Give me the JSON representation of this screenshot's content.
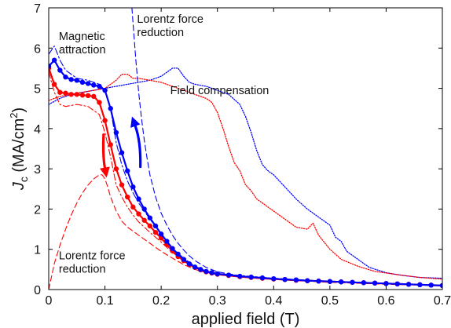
{
  "chart_data": {
    "type": "line",
    "title": "",
    "xlabel": "applied field (T)",
    "ylabel": {
      "main": "J",
      "sub": "c",
      "unit": " (MA/cm",
      "sup": "2",
      "close": ")"
    },
    "xlim": [
      0,
      0.7
    ],
    "ylim": [
      0,
      7
    ],
    "xticks": [
      0,
      0.1,
      0.2,
      0.3,
      0.4,
      0.5,
      0.6,
      0.7
    ],
    "xtick_labels": [
      "0",
      "0.1",
      "0.2",
      "0.3",
      "0.4",
      "0.5",
      "0.6",
      "0.7"
    ],
    "yticks": [
      0,
      1,
      2,
      3,
      4,
      5,
      6,
      7
    ],
    "ytick_labels": [
      "0",
      "1",
      "2",
      "3",
      "4",
      "5",
      "6",
      "7"
    ],
    "grid": false,
    "legend": "none",
    "annotations": [
      {
        "lines": [
          "Magnetic",
          "attraction"
        ],
        "x": 0.018,
        "y": 6.2
      },
      {
        "lines": [
          "Lorentz force",
          "reduction"
        ],
        "x": 0.157,
        "y": 6.63
      },
      {
        "lines": [
          "Field compensation"
        ],
        "x": 0.216,
        "y": 4.86
      },
      {
        "lines": [
          "Lorentz force",
          "reduction"
        ],
        "x": 0.018,
        "y": 0.75
      }
    ],
    "series": [
      {
        "color": "#0000ff",
        "style": "solid-markers",
        "x": [
          0,
          0.01,
          0.02,
          0.03,
          0.04,
          0.05,
          0.06,
          0.07,
          0.08,
          0.09,
          0.1,
          0.11,
          0.12,
          0.13,
          0.14,
          0.15,
          0.16,
          0.17,
          0.18,
          0.19,
          0.2,
          0.21,
          0.22,
          0.23,
          0.24,
          0.25,
          0.26,
          0.27,
          0.28,
          0.29,
          0.3,
          0.32,
          0.34,
          0.36,
          0.38,
          0.4,
          0.42,
          0.44,
          0.46,
          0.48,
          0.5,
          0.52,
          0.54,
          0.56,
          0.58,
          0.6,
          0.62,
          0.64,
          0.66,
          0.68,
          0.7
        ],
        "y": [
          5.55,
          5.7,
          5.45,
          5.28,
          5.22,
          5.2,
          5.15,
          5.12,
          5.08,
          5.05,
          4.95,
          4.5,
          3.9,
          3.4,
          2.95,
          2.55,
          2.25,
          2.0,
          1.78,
          1.58,
          1.38,
          1.2,
          1.02,
          0.88,
          0.75,
          0.64,
          0.56,
          0.5,
          0.45,
          0.42,
          0.39,
          0.36,
          0.33,
          0.31,
          0.29,
          0.27,
          0.25,
          0.24,
          0.22,
          0.21,
          0.2,
          0.19,
          0.18,
          0.17,
          0.16,
          0.15,
          0.14,
          0.13,
          0.12,
          0.11,
          0.1
        ]
      },
      {
        "color": "#ff0000",
        "style": "solid-markers",
        "x": [
          0,
          0.01,
          0.02,
          0.03,
          0.04,
          0.05,
          0.06,
          0.07,
          0.08,
          0.09,
          0.1,
          0.11,
          0.12,
          0.13,
          0.14,
          0.15,
          0.16,
          0.17,
          0.18,
          0.19,
          0.2,
          0.21,
          0.22,
          0.23,
          0.24,
          0.25,
          0.26,
          0.27,
          0.28,
          0.29,
          0.3,
          0.32,
          0.34,
          0.36,
          0.38,
          0.4,
          0.42,
          0.44,
          0.46,
          0.48,
          0.5,
          0.52,
          0.54,
          0.56,
          0.58,
          0.6,
          0.62,
          0.64,
          0.66,
          0.68,
          0.7
        ],
        "y": [
          5.5,
          5.1,
          4.9,
          4.88,
          4.85,
          4.85,
          4.83,
          4.82,
          4.8,
          4.65,
          4.2,
          3.6,
          3.0,
          2.6,
          2.3,
          2.05,
          1.88,
          1.72,
          1.58,
          1.42,
          1.28,
          1.12,
          0.96,
          0.82,
          0.72,
          0.62,
          0.55,
          0.49,
          0.44,
          0.41,
          0.38,
          0.35,
          0.32,
          0.3,
          0.28,
          0.26,
          0.25,
          0.23,
          0.22,
          0.21,
          0.2,
          0.19,
          0.18,
          0.17,
          0.16,
          0.15,
          0.14,
          0.13,
          0.12,
          0.11,
          0.1
        ]
      },
      {
        "color": "#0000ff",
        "style": "dashdot",
        "x": [
          0,
          0.01,
          0.02,
          0.03,
          0.05,
          0.07,
          0.09,
          0.1,
          0.11,
          0.12,
          0.13,
          0.14,
          0.15,
          0.16,
          0.18,
          0.2,
          0.22,
          0.24,
          0.26,
          0.28,
          0.3,
          0.35,
          0.4,
          0.5,
          0.6,
          0.7
        ],
        "y": [
          5.85,
          6.05,
          5.7,
          5.45,
          5.25,
          5.2,
          5.1,
          4.95,
          4.5,
          3.65,
          3.1,
          2.7,
          2.4,
          2.15,
          1.75,
          1.38,
          1.02,
          0.78,
          0.58,
          0.46,
          0.4,
          0.34,
          0.28,
          0.2,
          0.15,
          0.1
        ]
      },
      {
        "color": "#ff0000",
        "style": "dashdot",
        "x": [
          0,
          0.01,
          0.02,
          0.03,
          0.05,
          0.07,
          0.09,
          0.1,
          0.11,
          0.12,
          0.13,
          0.14,
          0.15,
          0.16,
          0.18,
          0.2,
          0.22,
          0.24,
          0.26,
          0.28,
          0.3,
          0.35,
          0.4,
          0.5,
          0.6,
          0.7
        ],
        "y": [
          5.4,
          4.9,
          4.6,
          4.55,
          4.6,
          4.55,
          4.35,
          3.9,
          3.3,
          2.6,
          2.3,
          2.05,
          1.85,
          1.68,
          1.42,
          1.18,
          0.92,
          0.72,
          0.56,
          0.46,
          0.4,
          0.33,
          0.27,
          0.2,
          0.15,
          0.1
        ]
      },
      {
        "color": "#0000ff",
        "style": "dashed",
        "x": [
          0.148,
          0.15,
          0.155,
          0.16,
          0.165,
          0.17,
          0.175,
          0.18,
          0.19,
          0.2,
          0.21,
          0.22,
          0.23,
          0.24,
          0.25,
          0.26,
          0.28,
          0.3,
          0.35,
          0.4,
          0.5,
          0.6,
          0.7
        ],
        "y": [
          7.0,
          6.6,
          5.7,
          4.9,
          4.25,
          3.7,
          3.25,
          2.85,
          2.3,
          1.9,
          1.6,
          1.35,
          1.15,
          0.98,
          0.84,
          0.72,
          0.55,
          0.44,
          0.32,
          0.26,
          0.19,
          0.14,
          0.1
        ]
      },
      {
        "color": "#ff0000",
        "style": "dashed",
        "x": [
          0,
          0.01,
          0.02,
          0.03,
          0.04,
          0.05,
          0.06,
          0.07,
          0.08,
          0.09,
          0.095,
          0.1,
          0.105,
          0.11,
          0.12,
          0.13,
          0.14,
          0.15,
          0.16,
          0.18,
          0.2,
          0.22,
          0.24,
          0.26,
          0.28,
          0.3,
          0.35,
          0.4,
          0.5,
          0.6,
          0.7
        ],
        "y": [
          0.0,
          0.65,
          1.1,
          1.5,
          1.85,
          2.15,
          2.4,
          2.6,
          2.75,
          2.85,
          2.85,
          2.75,
          2.55,
          2.3,
          1.95,
          1.7,
          1.55,
          1.45,
          1.35,
          1.15,
          0.95,
          0.78,
          0.62,
          0.5,
          0.42,
          0.37,
          0.3,
          0.25,
          0.18,
          0.13,
          0.1
        ]
      },
      {
        "color": "#0000ff",
        "style": "dotted",
        "x": [
          0,
          0.02,
          0.04,
          0.06,
          0.08,
          0.1,
          0.12,
          0.14,
          0.16,
          0.18,
          0.2,
          0.21,
          0.22,
          0.23,
          0.24,
          0.25,
          0.26,
          0.28,
          0.3,
          0.32,
          0.34,
          0.35,
          0.36,
          0.37,
          0.38,
          0.39,
          0.4,
          0.42,
          0.44,
          0.46,
          0.48,
          0.5,
          0.51,
          0.52,
          0.53,
          0.55,
          0.57,
          0.6,
          0.63,
          0.66,
          0.7
        ],
        "y": [
          4.6,
          4.75,
          4.85,
          4.9,
          4.95,
          5.0,
          5.05,
          5.1,
          5.15,
          5.2,
          5.3,
          5.4,
          5.5,
          5.5,
          5.3,
          5.15,
          5.1,
          5.05,
          4.95,
          4.85,
          4.6,
          4.3,
          3.9,
          3.45,
          3.1,
          2.95,
          2.85,
          2.55,
          2.25,
          2.0,
          1.8,
          1.6,
          1.3,
          1.2,
          0.95,
          0.75,
          0.55,
          0.42,
          0.35,
          0.3,
          0.28
        ]
      },
      {
        "color": "#ff0000",
        "style": "dotted",
        "x": [
          0,
          0.02,
          0.04,
          0.06,
          0.08,
          0.1,
          0.11,
          0.12,
          0.13,
          0.14,
          0.15,
          0.16,
          0.18,
          0.2,
          0.22,
          0.24,
          0.26,
          0.28,
          0.29,
          0.3,
          0.31,
          0.32,
          0.33,
          0.34,
          0.35,
          0.36,
          0.37,
          0.38,
          0.39,
          0.4,
          0.42,
          0.44,
          0.46,
          0.47,
          0.48,
          0.5,
          0.52,
          0.55,
          0.58,
          0.62,
          0.66,
          0.7
        ],
        "y": [
          4.7,
          4.8,
          4.85,
          4.9,
          4.95,
          5.0,
          5.1,
          5.2,
          5.35,
          5.35,
          5.25,
          5.25,
          5.2,
          5.15,
          5.05,
          4.95,
          4.85,
          4.75,
          4.65,
          4.4,
          4.0,
          3.55,
          3.15,
          2.95,
          2.6,
          2.45,
          2.25,
          2.15,
          2.05,
          1.95,
          1.75,
          1.55,
          1.5,
          1.65,
          1.35,
          1.0,
          0.75,
          0.58,
          0.45,
          0.37,
          0.3,
          0.26
        ]
      }
    ],
    "arrows": [
      {
        "color": "#ff0000",
        "direction": "down",
        "from": [
          0.0975,
          3.85
        ],
        "to": [
          0.103,
          2.78
        ]
      },
      {
        "color": "#0000ff",
        "direction": "up",
        "from": [
          0.163,
          3.05
        ],
        "to": [
          0.148,
          4.3
        ]
      }
    ]
  }
}
